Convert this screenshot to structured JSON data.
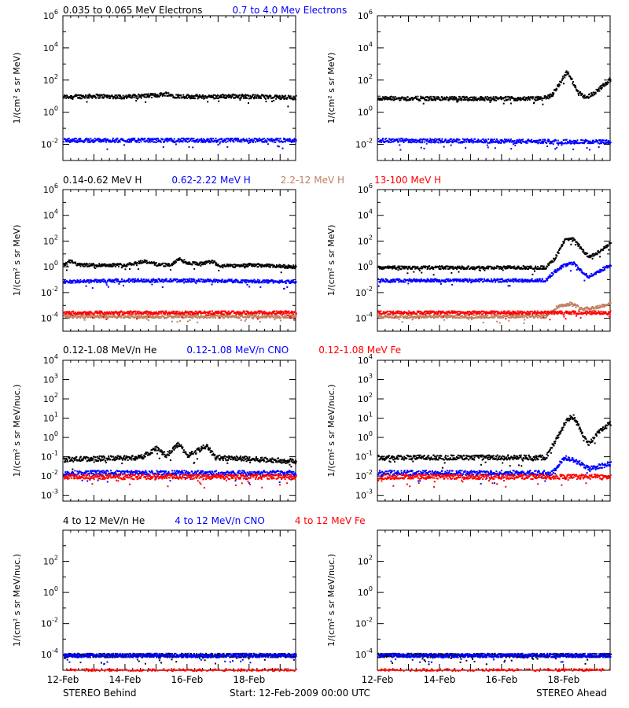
{
  "colors": {
    "black": "#000000",
    "blue": "#0000ff",
    "tan": "#c08060",
    "red": "#ff0000"
  },
  "rows": [
    {
      "legend": [
        {
          "text": "0.035 to 0.065 MeV Electrons",
          "color": "#000000"
        },
        {
          "text": "0.7 to 4.0 Mev Electrons",
          "color": "#0000ff"
        }
      ]
    },
    {
      "legend": [
        {
          "text": "0.14-0.62 MeV H",
          "color": "#000000"
        },
        {
          "text": "0.62-2.22 MeV H",
          "color": "#0000ff"
        },
        {
          "text": "2.2-12 MeV H",
          "color": "#c08060"
        },
        {
          "text": "13-100 MeV H",
          "color": "#ff0000"
        }
      ]
    },
    {
      "legend": [
        {
          "text": "0.12-1.08 MeV/n He",
          "color": "#000000"
        },
        {
          "text": "0.12-1.08 MeV/n CNO",
          "color": "#0000ff"
        },
        {
          "text": "0.12-1.08 MeV Fe",
          "color": "#ff0000"
        }
      ]
    },
    {
      "legend": [
        {
          "text": "4 to 12 MeV/n He",
          "color": "#000000"
        },
        {
          "text": "4 to 12 MeV/n CNO",
          "color": "#0000ff"
        },
        {
          "text": "4 to 12 MeV Fe",
          "color": "#ff0000"
        }
      ]
    }
  ],
  "footer": {
    "left": "STEREO Behind",
    "center": "Start: 12-Feb-2009 00:00 UTC",
    "right": "STEREO Ahead"
  },
  "chart_data": [
    {
      "id": "electrons-behind",
      "type": "scatter",
      "spacecraft": "STEREO Behind",
      "ylabel": "1/(cm² s sr MeV)",
      "y_log": true,
      "ylim_exp": [
        -3,
        6
      ],
      "ytick_exps": [
        -2,
        0,
        2,
        4,
        6
      ],
      "xlim_days": [
        12,
        19.5
      ],
      "xtick_labels": [
        "12-Feb",
        "14-Feb",
        "16-Feb",
        "18-Feb"
      ],
      "xtick_days": [
        12,
        14,
        16,
        18
      ],
      "series": [
        {
          "name": "0.035 to 0.065 MeV Electrons",
          "color": "#000000",
          "profile": [
            [
              12,
              1.0
            ],
            [
              13,
              1.05
            ],
            [
              14,
              1.0
            ],
            [
              15,
              1.1
            ],
            [
              15.3,
              1.2
            ],
            [
              15.6,
              1.05
            ],
            [
              16.5,
              1.0
            ],
            [
              17.5,
              1.05
            ],
            [
              19.5,
              0.95
            ]
          ]
        },
        {
          "name": "0.7 to 4.0 Mev Electrons",
          "color": "#0000ff",
          "profile": [
            [
              12,
              -1.7
            ],
            [
              19.5,
              -1.7
            ]
          ]
        }
      ]
    },
    {
      "id": "electrons-ahead",
      "type": "scatter",
      "spacecraft": "STEREO Ahead",
      "ylabel": "1/(cm² s sr MeV)",
      "y_log": true,
      "ylim_exp": [
        -3,
        6
      ],
      "ytick_exps": [
        -2,
        0,
        2,
        4,
        6
      ],
      "xlim_days": [
        12,
        19.5
      ],
      "xtick_labels": [
        "12-Feb",
        "14-Feb",
        "16-Feb",
        "18-Feb"
      ],
      "xtick_days": [
        12,
        14,
        16,
        18
      ],
      "series": [
        {
          "name": "0.035 to 0.065 MeV Electrons",
          "color": "#000000",
          "profile": [
            [
              12,
              0.9
            ],
            [
              17.3,
              0.9
            ],
            [
              17.6,
              1.1
            ],
            [
              17.9,
              2.0
            ],
            [
              18.1,
              2.6
            ],
            [
              18.4,
              1.4
            ],
            [
              18.7,
              0.95
            ],
            [
              19.0,
              1.3
            ],
            [
              19.5,
              2.1
            ]
          ]
        },
        {
          "name": "0.7 to 4.0 Mev Electrons",
          "color": "#0000ff",
          "profile": [
            [
              12,
              -1.7
            ],
            [
              19.5,
              -1.8
            ]
          ]
        }
      ]
    },
    {
      "id": "protons-behind",
      "type": "scatter",
      "spacecraft": "STEREO Behind",
      "ylabel": "1/(cm² s sr MeV)",
      "y_log": true,
      "ylim_exp": [
        -5,
        6
      ],
      "ytick_exps": [
        -4,
        -2,
        0,
        2,
        4,
        6
      ],
      "xlim_days": [
        12,
        19.5
      ],
      "xtick_labels": [
        "12-Feb",
        "14-Feb",
        "16-Feb",
        "18-Feb"
      ],
      "xtick_days": [
        12,
        14,
        16,
        18
      ],
      "series": [
        {
          "name": "0.14-0.62 MeV H",
          "color": "#000000",
          "profile": [
            [
              12,
              0.15
            ],
            [
              12.2,
              0.5
            ],
            [
              12.5,
              0.2
            ],
            [
              14,
              0.2
            ],
            [
              14.6,
              0.5
            ],
            [
              15,
              0.25
            ],
            [
              15.5,
              0.2
            ],
            [
              15.7,
              0.7
            ],
            [
              16,
              0.35
            ],
            [
              16.5,
              0.3
            ],
            [
              16.8,
              0.5
            ],
            [
              17,
              0.1
            ],
            [
              18,
              0.2
            ],
            [
              19.5,
              0.05
            ]
          ]
        },
        {
          "name": "0.62-2.22 MeV H",
          "color": "#0000ff",
          "profile": [
            [
              12,
              -1.1
            ],
            [
              14,
              -1.0
            ],
            [
              16,
              -1.0
            ],
            [
              19.5,
              -1.1
            ]
          ]
        },
        {
          "name": "2.2-12 MeV H",
          "color": "#c08060",
          "profile": [
            [
              12,
              -3.8
            ],
            [
              19.5,
              -3.8
            ]
          ]
        },
        {
          "name": "13-100 MeV H",
          "color": "#ff0000",
          "profile": [
            [
              12,
              -3.5
            ],
            [
              19.5,
              -3.5
            ]
          ]
        }
      ]
    },
    {
      "id": "protons-ahead",
      "type": "scatter",
      "spacecraft": "STEREO Ahead",
      "ylabel": "1/(cm² s sr MeV)",
      "y_log": true,
      "ylim_exp": [
        -5,
        6
      ],
      "ytick_exps": [
        -4,
        -2,
        0,
        2,
        4,
        6
      ],
      "xlim_days": [
        12,
        19.5
      ],
      "xtick_labels": [
        "12-Feb",
        "14-Feb",
        "16-Feb",
        "18-Feb"
      ],
      "xtick_days": [
        12,
        14,
        16,
        18
      ],
      "series": [
        {
          "name": "0.14-0.62 MeV H",
          "color": "#000000",
          "profile": [
            [
              12,
              0.0
            ],
            [
              17.4,
              0.0
            ],
            [
              17.7,
              0.7
            ],
            [
              18.0,
              2.1
            ],
            [
              18.3,
              2.2
            ],
            [
              18.6,
              1.3
            ],
            [
              18.8,
              0.85
            ],
            [
              19.1,
              1.2
            ],
            [
              19.5,
              1.9
            ]
          ]
        },
        {
          "name": "0.62-2.22 MeV H",
          "color": "#0000ff",
          "profile": [
            [
              12,
              -1.0
            ],
            [
              17.4,
              -1.0
            ],
            [
              17.7,
              -0.3
            ],
            [
              18.0,
              0.2
            ],
            [
              18.3,
              0.35
            ],
            [
              18.6,
              -0.4
            ],
            [
              18.8,
              -0.7
            ],
            [
              19.1,
              -0.3
            ],
            [
              19.5,
              0.2
            ]
          ]
        },
        {
          "name": "2.2-12 MeV H",
          "color": "#c08060",
          "profile": [
            [
              12,
              -3.8
            ],
            [
              17.4,
              -3.8
            ],
            [
              17.8,
              -3.0
            ],
            [
              18.2,
              -2.8
            ],
            [
              18.6,
              -3.2
            ],
            [
              19.0,
              -3.1
            ],
            [
              19.5,
              -2.8
            ]
          ]
        },
        {
          "name": "13-100 MeV H",
          "color": "#ff0000",
          "profile": [
            [
              12,
              -3.5
            ],
            [
              19.5,
              -3.5
            ]
          ]
        }
      ]
    },
    {
      "id": "heavy-low-behind",
      "type": "scatter",
      "spacecraft": "STEREO Behind",
      "ylabel": "1/(cm² s sr MeV/nuc.)",
      "y_log": true,
      "ylim_exp": [
        -3.3,
        4
      ],
      "ytick_exps": [
        -3,
        -2,
        -1,
        0,
        1,
        2,
        3,
        4
      ],
      "xlim_days": [
        12,
        19.5
      ],
      "xtick_labels": [
        "12-Feb",
        "14-Feb",
        "16-Feb",
        "18-Feb"
      ],
      "xtick_days": [
        12,
        14,
        16,
        18
      ],
      "series": [
        {
          "name": "0.12-1.08 MeV/n He",
          "color": "#000000",
          "profile": [
            [
              12,
              -1.1
            ],
            [
              14.5,
              -1.0
            ],
            [
              15.0,
              -0.5
            ],
            [
              15.3,
              -0.9
            ],
            [
              15.7,
              -0.3
            ],
            [
              16.0,
              -0.9
            ],
            [
              16.6,
              -0.4
            ],
            [
              16.9,
              -1.0
            ],
            [
              19.5,
              -1.2
            ]
          ]
        },
        {
          "name": "0.12-1.08 MeV/n CNO",
          "color": "#0000ff",
          "profile": [
            [
              12,
              -1.8
            ],
            [
              19.5,
              -1.8
            ]
          ]
        },
        {
          "name": "0.12-1.08 MeV Fe",
          "color": "#ff0000",
          "profile": [
            [
              12,
              -2.0
            ],
            [
              19.5,
              -2.0
            ]
          ]
        }
      ]
    },
    {
      "id": "heavy-low-ahead",
      "type": "scatter",
      "spacecraft": "STEREO Ahead",
      "ylabel": "1/(cm² s sr MeV/nuc.)",
      "y_log": true,
      "ylim_exp": [
        -3.3,
        4
      ],
      "ytick_exps": [
        -3,
        -2,
        -1,
        0,
        1,
        2,
        3,
        4
      ],
      "xlim_days": [
        12,
        19.5
      ],
      "xtick_labels": [
        "12-Feb",
        "14-Feb",
        "16-Feb",
        "18-Feb"
      ],
      "xtick_days": [
        12,
        14,
        16,
        18
      ],
      "series": [
        {
          "name": "0.12-1.08 MeV/n He",
          "color": "#000000",
          "profile": [
            [
              12,
              -1.0
            ],
            [
              17.4,
              -1.0
            ],
            [
              17.8,
              0.1
            ],
            [
              18.1,
              1.0
            ],
            [
              18.3,
              1.1
            ],
            [
              18.6,
              0.2
            ],
            [
              18.8,
              -0.3
            ],
            [
              19.1,
              0.3
            ],
            [
              19.5,
              0.8
            ]
          ]
        },
        {
          "name": "0.12-1.08 MeV/n CNO",
          "color": "#0000ff",
          "profile": [
            [
              12,
              -1.8
            ],
            [
              17.6,
              -1.8
            ],
            [
              18.0,
              -1.0
            ],
            [
              18.4,
              -1.2
            ],
            [
              18.8,
              -1.6
            ],
            [
              19.5,
              -1.3
            ]
          ]
        },
        {
          "name": "0.12-1.08 MeV Fe",
          "color": "#ff0000",
          "profile": [
            [
              12,
              -2.0
            ],
            [
              19.5,
              -2.0
            ]
          ]
        }
      ]
    },
    {
      "id": "heavy-high-behind",
      "type": "scatter",
      "spacecraft": "STEREO Behind",
      "ylabel": "1/(cm² s sr MeV/nuc.)",
      "y_log": true,
      "ylim_exp": [
        -5,
        4
      ],
      "ytick_exps": [
        -4,
        -2,
        0,
        2
      ],
      "xlim_days": [
        12,
        19.5
      ],
      "xtick_labels": [
        "12-Feb",
        "14-Feb",
        "16-Feb",
        "18-Feb"
      ],
      "xtick_days": [
        12,
        14,
        16,
        18
      ],
      "series": [
        {
          "name": "4 to 12 MeV/n He",
          "color": "#000000",
          "profile": [
            [
              12,
              -4.0
            ],
            [
              19.5,
              -4.0
            ]
          ]
        },
        {
          "name": "4 to 12 MeV/n CNO",
          "color": "#0000ff",
          "profile": [
            [
              12,
              -4.0
            ],
            [
              19.5,
              -4.0
            ]
          ]
        },
        {
          "name": "4 to 12 MeV Fe",
          "color": "#ff0000",
          "profile": [
            [
              12,
              -5.0
            ],
            [
              19.5,
              -5.0
            ]
          ]
        }
      ]
    },
    {
      "id": "heavy-high-ahead",
      "type": "scatter",
      "spacecraft": "STEREO Ahead",
      "ylabel": "1/(cm² s sr MeV/nuc.)",
      "y_log": true,
      "ylim_exp": [
        -5,
        4
      ],
      "ytick_exps": [
        -4,
        -2,
        0,
        2
      ],
      "xlim_days": [
        12,
        19.5
      ],
      "xtick_labels": [
        "12-Feb",
        "14-Feb",
        "16-Feb",
        "18-Feb"
      ],
      "xtick_days": [
        12,
        14,
        16,
        18
      ],
      "series": [
        {
          "name": "4 to 12 MeV/n He",
          "color": "#000000",
          "profile": [
            [
              12,
              -4.0
            ],
            [
              19.5,
              -4.0
            ]
          ]
        },
        {
          "name": "4 to 12 MeV/n CNO",
          "color": "#0000ff",
          "profile": [
            [
              12,
              -4.0
            ],
            [
              19.5,
              -4.0
            ]
          ]
        },
        {
          "name": "4 to 12 MeV Fe",
          "color": "#ff0000",
          "profile": [
            [
              12,
              -5.0
            ],
            [
              19.5,
              -5.0
            ]
          ]
        }
      ]
    }
  ]
}
